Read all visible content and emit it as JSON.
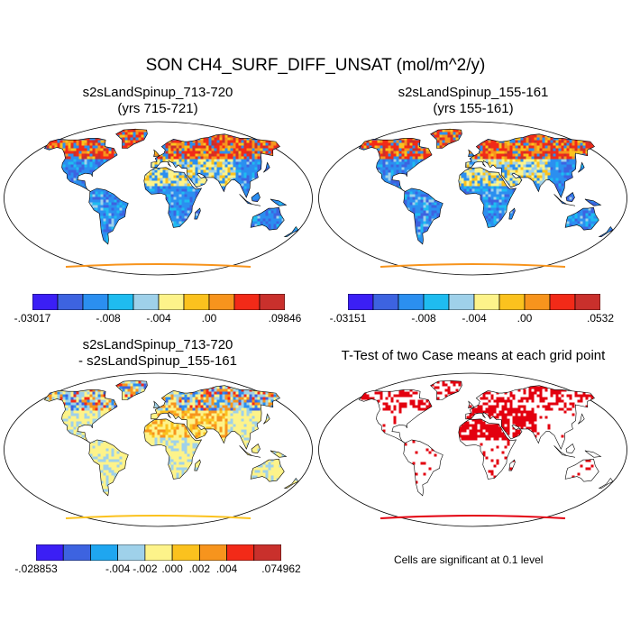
{
  "figure": {
    "title": "SON CH4_SURF_DIFF_UNSAT (mol/m^2/y)"
  },
  "panels": [
    {
      "id": "case1",
      "title_line1": "s2sLandSpinup_713-720",
      "title_line2": "(yrs 715-721)",
      "type": "field",
      "colorbar": {
        "colors": [
          "#3b1ff5",
          "#3d63e0",
          "#2b8ff0",
          "#1fbcf0",
          "#9fd1ea",
          "#fdf38a",
          "#fbc21e",
          "#f7941d",
          "#f22a18",
          "#c9302c"
        ],
        "labels": [
          "-.03017",
          "-.008",
          "-.004",
          ".00",
          ".09846"
        ]
      }
    },
    {
      "id": "case2",
      "title_line1": "s2sLandSpinup_155-161",
      "title_line2": "(yrs 155-161)",
      "type": "field",
      "colorbar": {
        "colors": [
          "#3b1ff5",
          "#3d63e0",
          "#2b8ff0",
          "#1fbcf0",
          "#9fd1ea",
          "#fdf38a",
          "#fbc21e",
          "#f7941d",
          "#f22a18",
          "#c9302c"
        ],
        "labels": [
          "-.03151",
          "-.008",
          "-.004",
          ".00",
          ".0532"
        ]
      }
    },
    {
      "id": "diff",
      "title_line1": "s2sLandSpinup_713-720",
      "title_line2": "- s2sLandSpinup_155-161",
      "type": "diff",
      "colorbar": {
        "colors": [
          "#3b1ff5",
          "#3d63e0",
          "#1fa6f0",
          "#9fd1ea",
          "#fdf38a",
          "#fbc21e",
          "#f7941d",
          "#f22a18",
          "#c9302c"
        ],
        "labels": [
          "-.028853",
          "-.004",
          "-.002",
          ".000",
          ".002",
          ".004",
          ".074962"
        ]
      }
    },
    {
      "id": "ttest",
      "title_line1": "T-Test of two Case means at each grid point",
      "title_line2": "",
      "type": "ttest",
      "note": "Cells are significant at 0.1 level"
    }
  ],
  "colors": {
    "ocean": "#ffffff",
    "coast": "#000000",
    "significant": "#e3000f"
  }
}
